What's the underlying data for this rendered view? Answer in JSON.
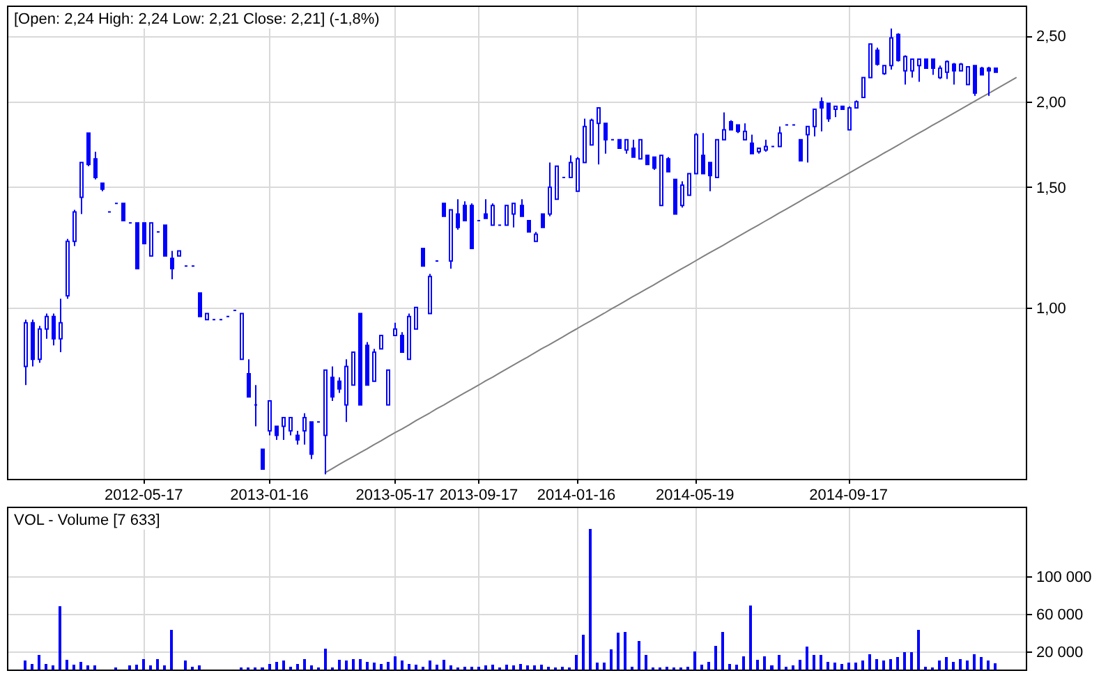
{
  "chart_data": [
    {
      "type": "candlestick",
      "title": "[Open: 2,24 High: 2,24 Low: 2,21 Close: 2,21] (-1,8%)",
      "color": "#0000ff",
      "log": true,
      "grid": true,
      "ylim": [
        0.56,
        2.76
      ],
      "yticks": [
        {
          "value": 1,
          "label": "1,00"
        },
        {
          "value": 1.5,
          "label": "1,50"
        },
        {
          "value": 2,
          "label": "2,00"
        },
        {
          "value": 2.5,
          "label": "2,50"
        }
      ],
      "categories": [
        null,
        null,
        null,
        null,
        null,
        null,
        null,
        null,
        null,
        null,
        null,
        null,
        null,
        null,
        null,
        null,
        null,
        null,
        null,
        "2012-05-17",
        null,
        null,
        null,
        null,
        null,
        null,
        null,
        null,
        null,
        null,
        null,
        null,
        null,
        null,
        null,
        null,
        null,
        "2013-01-16",
        null,
        null,
        null,
        null,
        null,
        null,
        null,
        null,
        null,
        null,
        null,
        null,
        null,
        null,
        null,
        null,
        null,
        "2013-05-17",
        null,
        null,
        null,
        null,
        null,
        null,
        null,
        null,
        null,
        null,
        null,
        "2013-09-17",
        null,
        null,
        null,
        null,
        null,
        null,
        null,
        null,
        null,
        null,
        null,
        null,
        null,
        "2014-01-16",
        null,
        null,
        null,
        null,
        null,
        null,
        null,
        null,
        null,
        null,
        null,
        null,
        null,
        null,
        null,
        null,
        "2014-05-19",
        null,
        null,
        null,
        null,
        null,
        null,
        null,
        null,
        null,
        null,
        null,
        null,
        null,
        null,
        null,
        null,
        null,
        null,
        null,
        null,
        null,
        "2014-09-17",
        null,
        null,
        null,
        null,
        null,
        null,
        null,
        null,
        null,
        null,
        null,
        null,
        null,
        null,
        null,
        null,
        null,
        null,
        null,
        null,
        null,
        null,
        null,
        null,
        null
      ],
      "ohlc": [
        null,
        null,
        [
          0.82,
          0.96,
          0.77,
          0.95
        ],
        [
          0.95,
          0.96,
          0.82,
          0.84
        ],
        [
          0.84,
          0.94,
          0.83,
          0.93
        ],
        [
          0.93,
          0.98,
          0.9,
          0.97
        ],
        [
          0.97,
          0.98,
          0.88,
          0.9
        ],
        [
          0.9,
          1.03,
          0.86,
          0.95
        ],
        [
          1.04,
          1.26,
          1.03,
          1.25
        ],
        [
          1.25,
          1.39,
          1.23,
          1.38
        ],
        [
          1.45,
          1.63,
          1.37,
          1.63
        ],
        [
          1.8,
          1.8,
          1.61,
          1.62
        ],
        [
          1.65,
          1.69,
          1.54,
          1.55
        ],
        [
          1.52,
          1.52,
          1.48,
          1.49
        ],
        [
          1.38,
          1.38,
          1.38,
          1.38
        ],
        [
          1.42,
          1.42,
          1.42,
          1.42
        ],
        [
          1.42,
          1.42,
          1.34,
          1.34
        ],
        [
          1.33,
          1.33,
          1.33,
          1.33
        ],
        [
          1.33,
          1.33,
          1.14,
          1.14
        ],
        [
          1.33,
          1.33,
          1.24,
          1.24
        ],
        [
          1.19,
          1.33,
          1.19,
          1.33
        ],
        [
          1.29,
          1.29,
          1.29,
          1.29
        ],
        [
          1.32,
          1.32,
          1.19,
          1.19
        ],
        [
          1.18,
          1.21,
          1.1,
          1.14
        ],
        [
          1.19,
          1.21,
          1.19,
          1.21
        ],
        [
          1.15,
          1.15,
          1.15,
          1.15
        ],
        [
          1.15,
          1.15,
          1.15,
          1.15
        ],
        [
          1.05,
          1.05,
          0.97,
          0.97
        ],
        [
          0.96,
          0.98,
          0.96,
          0.98
        ],
        [
          0.96,
          0.96,
          0.96,
          0.96
        ],
        [
          0.96,
          0.96,
          0.96,
          0.96
        ],
        [
          0.97,
          0.97,
          0.97,
          0.97
        ],
        [
          0.99,
          0.99,
          0.99,
          0.99
        ],
        [
          0.84,
          0.98,
          0.84,
          0.98
        ],
        [
          0.8,
          0.84,
          0.74,
          0.74
        ],
        [
          0.72,
          0.77,
          0.67,
          0.72
        ],
        [
          0.62,
          0.62,
          0.58,
          0.58
        ],
        [
          0.66,
          0.73,
          0.65,
          0.73
        ],
        [
          0.67,
          0.67,
          0.64,
          0.65
        ],
        [
          0.67,
          0.69,
          0.64,
          0.69
        ],
        [
          0.66,
          0.69,
          0.65,
          0.69
        ],
        [
          0.65,
          0.66,
          0.63,
          0.64
        ],
        [
          0.66,
          0.7,
          0.63,
          0.69
        ],
        [
          0.68,
          0.68,
          0.6,
          0.61
        ],
        [
          0.68,
          0.68,
          0.68,
          0.68
        ],
        [
          0.65,
          0.81,
          0.57,
          0.81
        ],
        [
          0.79,
          0.82,
          0.73,
          0.74
        ],
        [
          0.78,
          0.79,
          0.75,
          0.76
        ],
        [
          0.72,
          0.84,
          0.68,
          0.82
        ],
        [
          0.77,
          0.86,
          0.77,
          0.86
        ],
        [
          0.98,
          0.98,
          0.72,
          0.72
        ],
        [
          0.88,
          0.89,
          0.77,
          0.77
        ],
        [
          0.78,
          0.87,
          0.78,
          0.86
        ],
        [
          0.87,
          0.91,
          0.87,
          0.91
        ],
        [
          0.72,
          0.81,
          0.72,
          0.81
        ],
        [
          0.91,
          0.95,
          0.91,
          0.93
        ],
        [
          0.91,
          0.92,
          0.86,
          0.86
        ],
        [
          0.84,
          0.98,
          0.84,
          0.97
        ],
        [
          0.93,
          1.0,
          0.93,
          1.0
        ],
        [
          1.22,
          1.22,
          1.15,
          1.15
        ],
        [
          0.98,
          1.12,
          0.98,
          1.11
        ],
        [
          1.17,
          1.17,
          1.17,
          1.17
        ],
        [
          1.42,
          1.42,
          1.36,
          1.36
        ],
        [
          1.17,
          1.39,
          1.14,
          1.39
        ],
        [
          1.37,
          1.44,
          1.3,
          1.31
        ],
        [
          1.41,
          1.43,
          1.34,
          1.34
        ],
        [
          1.41,
          1.42,
          1.22,
          1.22
        ],
        [
          1.34,
          1.34,
          1.34,
          1.34
        ],
        [
          1.37,
          1.44,
          1.35,
          1.35
        ],
        [
          1.32,
          1.42,
          1.32,
          1.41
        ],
        [
          1.32,
          1.32,
          1.32,
          1.32
        ],
        [
          1.32,
          1.41,
          1.32,
          1.41
        ],
        [
          1.37,
          1.42,
          1.31,
          1.42
        ],
        [
          1.41,
          1.44,
          1.36,
          1.36
        ],
        [
          1.34,
          1.34,
          1.29,
          1.29
        ],
        [
          1.25,
          1.29,
          1.25,
          1.28
        ],
        [
          1.37,
          1.37,
          1.31,
          1.31
        ],
        [
          1.37,
          1.63,
          1.36,
          1.5
        ],
        [
          1.44,
          1.61,
          1.44,
          1.61
        ],
        [
          1.55,
          1.55,
          1.55,
          1.55
        ],
        [
          1.55,
          1.67,
          1.55,
          1.63
        ],
        [
          1.48,
          1.66,
          1.48,
          1.65
        ],
        [
          1.63,
          1.89,
          1.63,
          1.84
        ],
        [
          1.73,
          1.89,
          1.73,
          1.88
        ],
        [
          1.86,
          1.96,
          1.62,
          1.96
        ],
        [
          1.86,
          1.86,
          1.68,
          1.76
        ],
        [
          1.76,
          1.76,
          1.76,
          1.76
        ],
        [
          1.76,
          1.76,
          1.71,
          1.71
        ],
        [
          1.7,
          1.76,
          1.68,
          1.76
        ],
        [
          1.71,
          1.76,
          1.66,
          1.66
        ],
        [
          1.65,
          1.76,
          1.65,
          1.76
        ],
        [
          1.67,
          1.67,
          1.62,
          1.62
        ],
        [
          1.66,
          1.66,
          1.59,
          1.6
        ],
        [
          1.41,
          1.67,
          1.41,
          1.67
        ],
        [
          1.65,
          1.66,
          1.58,
          1.58
        ],
        [
          1.54,
          1.54,
          1.37,
          1.37
        ],
        [
          1.41,
          1.53,
          1.4,
          1.51
        ],
        [
          1.46,
          1.57,
          1.46,
          1.57
        ],
        [
          1.57,
          1.8,
          1.57,
          1.79
        ],
        [
          1.67,
          1.8,
          1.57,
          1.57
        ],
        [
          1.63,
          1.63,
          1.48,
          1.56
        ],
        [
          1.55,
          1.76,
          1.55,
          1.76
        ],
        [
          1.76,
          1.93,
          1.76,
          1.82
        ],
        [
          1.87,
          1.88,
          1.82,
          1.82
        ],
        [
          1.85,
          1.85,
          1.8,
          1.81
        ],
        [
          1.76,
          1.86,
          1.76,
          1.81
        ],
        [
          1.74,
          1.79,
          1.68,
          1.68
        ],
        [
          1.69,
          1.71,
          1.68,
          1.71
        ],
        [
          1.7,
          1.76,
          1.69,
          1.72
        ],
        [
          1.72,
          1.72,
          1.72,
          1.72
        ],
        [
          1.72,
          1.84,
          1.72,
          1.8
        ],
        [
          1.85,
          1.85,
          1.85,
          1.85
        ],
        [
          1.85,
          1.85,
          1.85,
          1.85
        ],
        [
          1.76,
          1.76,
          1.64,
          1.64
        ],
        [
          1.79,
          1.84,
          1.63,
          1.84
        ],
        [
          1.84,
          1.95,
          1.78,
          1.95
        ],
        [
          2.0,
          2.03,
          1.81,
          1.96
        ],
        [
          1.99,
          1.99,
          1.87,
          1.89
        ],
        [
          1.95,
          1.97,
          1.9,
          1.97
        ],
        [
          1.97,
          1.97,
          1.95,
          1.95
        ],
        [
          1.82,
          1.97,
          1.82,
          1.96
        ],
        [
          1.96,
          2.01,
          1.96,
          2.0
        ],
        [
          2.03,
          2.17,
          2.03,
          2.17
        ],
        [
          2.17,
          2.43,
          2.17,
          2.43
        ],
        [
          2.38,
          2.4,
          2.26,
          2.27
        ],
        [
          2.2,
          2.26,
          2.19,
          2.26
        ],
        [
          2.26,
          2.56,
          2.23,
          2.48
        ],
        [
          2.51,
          2.52,
          2.29,
          2.3
        ],
        [
          2.22,
          2.34,
          2.12,
          2.33
        ],
        [
          2.22,
          2.31,
          2.17,
          2.31
        ],
        [
          2.26,
          2.31,
          2.14,
          2.31
        ],
        [
          2.31,
          2.31,
          2.24,
          2.24
        ],
        [
          2.31,
          2.31,
          2.19,
          2.24
        ],
        [
          2.17,
          2.26,
          2.16,
          2.24
        ],
        [
          2.21,
          2.3,
          2.16,
          2.29
        ],
        [
          2.27,
          2.28,
          2.12,
          2.22
        ],
        [
          2.22,
          2.28,
          2.22,
          2.27
        ],
        [
          2.12,
          2.25,
          2.12,
          2.25
        ],
        [
          2.26,
          2.26,
          2.04,
          2.06
        ],
        [
          2.24,
          2.25,
          2.19,
          2.19
        ],
        [
          2.24,
          2.25,
          2.04,
          2.22
        ],
        [
          2.24,
          2.24,
          2.21,
          2.21
        ],
        null,
        null,
        null,
        null
      ],
      "series": [
        {
          "type": "line",
          "color": "#808080",
          "values": [
            null,
            null,
            null,
            null,
            null,
            null,
            null,
            null,
            null,
            null,
            null,
            null,
            null,
            null,
            null,
            null,
            null,
            null,
            null,
            null,
            null,
            null,
            null,
            null,
            null,
            null,
            null,
            null,
            null,
            null,
            null,
            null,
            null,
            null,
            null,
            null,
            null,
            null,
            null,
            null,
            null,
            null,
            null,
            null,
            null,
            0.573,
            0.581,
            0.589,
            0.597,
            0.605,
            0.613,
            0.621,
            0.63,
            0.638,
            0.647,
            0.656,
            0.664,
            0.673,
            0.683,
            0.692,
            0.701,
            0.711,
            0.72,
            0.73,
            0.74,
            0.75,
            0.76,
            0.77,
            0.781,
            0.791,
            0.802,
            0.813,
            0.824,
            0.835,
            0.846,
            0.858,
            0.87,
            0.881,
            0.893,
            0.905,
            0.918,
            0.93,
            0.943,
            0.955,
            0.968,
            0.981,
            0.995,
            1.008,
            1.022,
            1.036,
            1.05,
            1.064,
            1.078,
            1.093,
            1.108,
            1.123,
            1.138,
            1.153,
            1.169,
            1.185,
            1.201,
            1.217,
            1.233,
            1.25,
            1.267,
            1.284,
            1.302,
            1.319,
            1.337,
            1.355,
            1.374,
            1.392,
            1.411,
            1.43,
            1.45,
            1.469,
            1.489,
            1.509,
            1.53,
            1.55,
            1.571,
            1.593,
            1.614,
            1.636,
            1.658,
            1.681,
            1.703,
            1.726,
            1.75,
            1.774,
            1.798,
            1.822,
            1.847,
            1.872,
            1.897,
            1.923,
            1.949,
            1.975,
            2.002,
            2.029,
            2.056,
            2.084,
            2.112,
            2.141,
            2.17,
            null
          ]
        }
      ]
    },
    {
      "type": "bar",
      "title": "VOL - Volume [7 633]",
      "color": "#0000ff",
      "grid": true,
      "tick_labels": "y",
      "ylim": [
        0,
        173000
      ],
      "yticks": [
        {
          "value": 20000,
          "label": "20 000"
        },
        {
          "value": 60000,
          "label": "60 000"
        },
        {
          "value": 100000,
          "label": "100 000"
        }
      ],
      "categories": [
        null,
        null,
        null,
        null,
        null,
        null,
        null,
        null,
        null,
        null,
        null,
        null,
        null,
        null,
        null,
        null,
        null,
        null,
        null,
        "2012-05-17",
        null,
        null,
        null,
        null,
        null,
        null,
        null,
        null,
        null,
        null,
        null,
        null,
        null,
        null,
        null,
        null,
        null,
        "2013-01-16",
        null,
        null,
        null,
        null,
        null,
        null,
        null,
        null,
        null,
        null,
        null,
        null,
        null,
        null,
        null,
        null,
        null,
        "2013-05-17",
        null,
        null,
        null,
        null,
        null,
        null,
        null,
        null,
        null,
        null,
        null,
        "2013-09-17",
        null,
        null,
        null,
        null,
        null,
        null,
        null,
        null,
        null,
        null,
        null,
        null,
        null,
        "2014-01-16",
        null,
        null,
        null,
        null,
        null,
        null,
        null,
        null,
        null,
        null,
        null,
        null,
        null,
        null,
        null,
        null,
        "2014-05-19",
        null,
        null,
        null,
        null,
        null,
        null,
        null,
        null,
        null,
        null,
        null,
        null,
        null,
        null,
        null,
        null,
        null,
        null,
        null,
        null,
        null,
        "2014-09-17",
        null,
        null,
        null,
        null,
        null,
        null,
        null,
        null,
        null,
        null,
        null,
        null,
        null,
        null,
        null,
        null,
        null,
        null,
        null,
        null,
        null,
        null,
        null,
        null,
        null
      ],
      "values": [
        null,
        null,
        10000,
        7000,
        16000,
        7000,
        5000,
        68000,
        11000,
        6000,
        9000,
        5000,
        5000,
        null,
        null,
        3000,
        null,
        5000,
        6000,
        12000,
        5000,
        12000,
        5000,
        43000,
        null,
        10000,
        4000,
        5000,
        null,
        null,
        null,
        null,
        null,
        3000,
        3000,
        3000,
        3000,
        7000,
        9000,
        10000,
        4000,
        7000,
        12000,
        5000,
        3000,
        23000,
        3000,
        11000,
        10000,
        12000,
        12000,
        9000,
        8000,
        7000,
        9000,
        15000,
        10000,
        7000,
        6000,
        4000,
        10000,
        6000,
        11000,
        5000,
        3000,
        4000,
        4000,
        4000,
        5000,
        6000,
        3000,
        6000,
        5000,
        7000,
        5000,
        5000,
        6000,
        4000,
        3000,
        4000,
        3000,
        16000,
        38000,
        150000,
        8000,
        8000,
        22000,
        40000,
        41000,
        4000,
        31000,
        16000,
        3000,
        3000,
        4000,
        3000,
        3000,
        4000,
        20000,
        6000,
        9000,
        26000,
        41000,
        7000,
        6000,
        15000,
        69000,
        11000,
        15000,
        5000,
        16000,
        4000,
        5000,
        11000,
        25000,
        16000,
        16000,
        9000,
        8000,
        7000,
        8000,
        8000,
        10000,
        17000,
        12000,
        10000,
        12000,
        14000,
        19000,
        19000,
        43000,
        4000,
        3000,
        10000,
        14000,
        9000,
        12000,
        10000,
        17000,
        14000,
        10000,
        7633,
        null,
        null,
        null,
        null
      ]
    }
  ]
}
